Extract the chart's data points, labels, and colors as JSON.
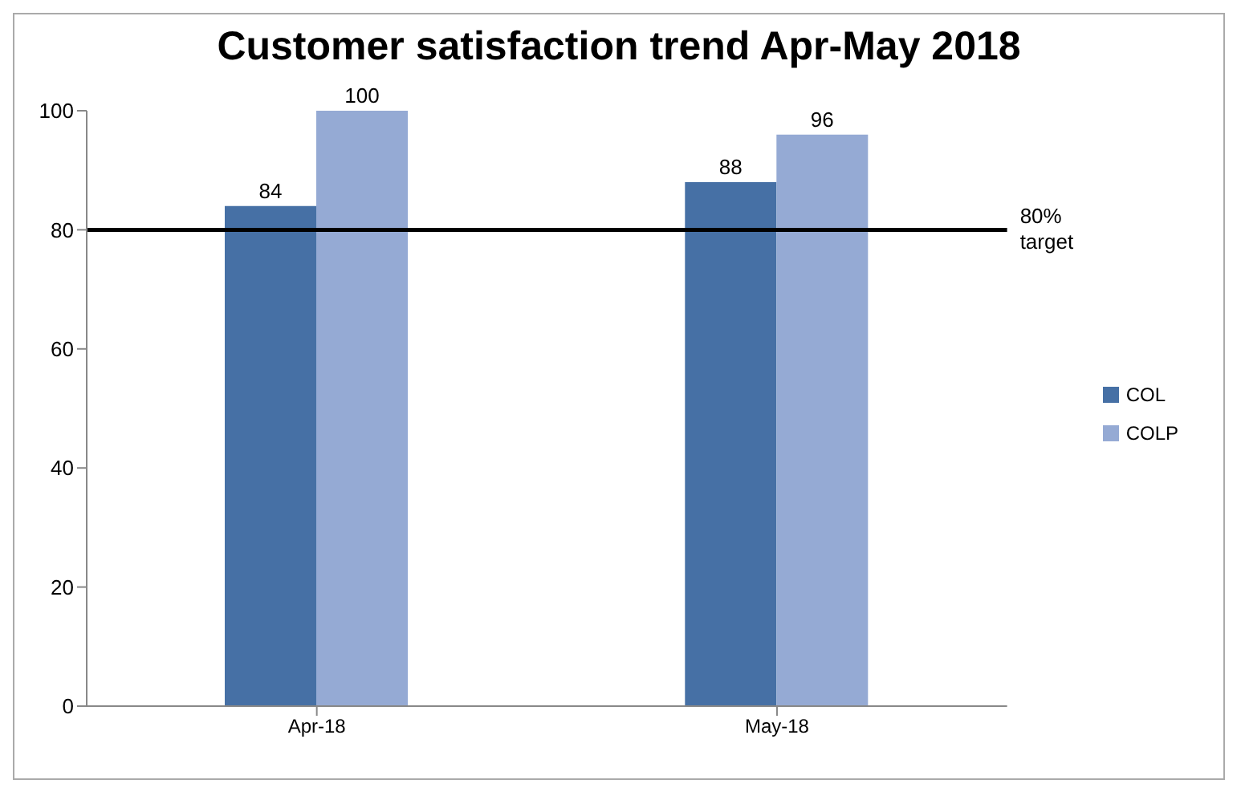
{
  "chart_data": {
    "type": "bar",
    "title": "Customer satisfaction trend Apr-May 2018",
    "categories": [
      "Apr-18",
      "May-18"
    ],
    "series": [
      {
        "name": "COL",
        "color": "#4670a5",
        "values": [
          84,
          88
        ]
      },
      {
        "name": "COLP",
        "color": "#95aad4",
        "values": [
          100,
          96
        ]
      }
    ],
    "ylim": [
      0,
      100
    ],
    "yticks": [
      0,
      20,
      40,
      60,
      80,
      100
    ],
    "grid": false,
    "legend": "right",
    "data_labels": true,
    "ref_lines": [
      {
        "axis": "y",
        "value": 80,
        "label": "80% target",
        "color": "#000000"
      }
    ]
  }
}
